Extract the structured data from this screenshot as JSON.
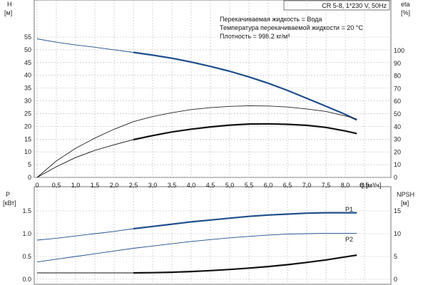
{
  "chart_data": [
    {
      "type": "line",
      "title": "CR 5-8, 1*230 V, 50Hz",
      "xlabel": "Q",
      "xunit": "[м³/ч]",
      "ylabel": "H",
      "yunit": "[м]",
      "y2label": "eta",
      "y2unit": "[%]",
      "xlim": [
        0,
        9
      ],
      "ylim": [
        0,
        55
      ],
      "y2lim": [
        0,
        100
      ],
      "xticks": [
        "0",
        "0,5",
        "1,0",
        "1,5",
        "2,0",
        "2,5",
        "3,0",
        "3,5",
        "4,0",
        "4,5",
        "5,0",
        "5,5",
        "6,0",
        "6,5",
        "7,0",
        "7,5",
        "8,0",
        "8,5"
      ],
      "yticks": [
        "0",
        "5",
        "10",
        "15",
        "20",
        "25",
        "30",
        "35",
        "40",
        "45",
        "50",
        "55"
      ],
      "y2ticks": [
        "0",
        "10",
        "20",
        "30",
        "40",
        "50",
        "60",
        "70",
        "80",
        "90",
        "100"
      ],
      "grid": true,
      "annotations": [
        "Перекачиваемая жидкость = Вода",
        "Температура перекачиваемой жидкости = 20 °C",
        "Плотность = 998.2 кг/м³"
      ],
      "series": [
        {
          "axis": "left",
          "color": "#1f4e8c",
          "x": [
            0,
            0.5,
            1.0,
            1.5,
            2.0,
            2.5,
            3.0,
            3.5,
            4.0,
            4.5,
            5.0,
            5.5,
            6.0,
            6.5,
            7.0,
            7.5,
            8.0,
            8.3
          ],
          "values": [
            54.3,
            53.0,
            51.9,
            51.0,
            50.0,
            49.0,
            47.9,
            46.7,
            45.2,
            43.5,
            41.6,
            39.4,
            36.9,
            34.1,
            31.0,
            27.9,
            24.7,
            22.5
          ],
          "highlight_from": 2.5
        },
        {
          "axis": "right",
          "color": "#222222",
          "x": [
            0,
            0.5,
            1.0,
            1.5,
            2.0,
            2.5,
            3.0,
            3.5,
            4.0,
            4.5,
            5.0,
            5.5,
            6.0,
            6.5,
            7.0,
            7.5,
            8.0,
            8.3
          ],
          "values": [
            0,
            13,
            23,
            31,
            38,
            44,
            48,
            51,
            53.5,
            55,
            56,
            56.5,
            56.3,
            55.5,
            54,
            52,
            48.5,
            46
          ],
          "highlight_from": 100
        },
        {
          "axis": "left",
          "color": "#111111",
          "x": [
            0,
            0.5,
            1.0,
            1.5,
            2.0,
            2.5,
            3.0,
            3.5,
            4.0,
            4.5,
            5.0,
            5.5,
            6.0,
            6.5,
            7.0,
            7.5,
            8.0,
            8.3
          ],
          "values": [
            0,
            4.2,
            7.8,
            10.6,
            12.8,
            14.8,
            16.4,
            17.8,
            18.9,
            19.8,
            20.5,
            20.9,
            21.0,
            20.8,
            20.4,
            19.6,
            18.2,
            17.2
          ],
          "highlight_from": 2.5
        }
      ]
    },
    {
      "type": "line",
      "ylabel": "P",
      "yunit": "[кВт]",
      "y2label": "NPSH",
      "y2unit": "[м]",
      "xlim": [
        0,
        9
      ],
      "ylim": [
        0,
        2.0
      ],
      "y2lim": [
        0,
        20
      ],
      "yticks": [
        "0.0",
        "0.5",
        "1.0",
        "1.5"
      ],
      "y2ticks": [
        "0",
        "5",
        "10",
        "15"
      ],
      "grid": true,
      "series": [
        {
          "name": "P1",
          "axis": "left",
          "color": "#1f4e8c",
          "x": [
            0,
            0.5,
            1.0,
            1.5,
            2.0,
            2.5,
            3.0,
            3.5,
            4.0,
            4.5,
            5.0,
            5.5,
            6.0,
            6.5,
            7.0,
            7.5,
            8.0,
            8.3
          ],
          "values": [
            0.86,
            0.9,
            0.95,
            1.0,
            1.05,
            1.11,
            1.16,
            1.21,
            1.26,
            1.3,
            1.34,
            1.38,
            1.41,
            1.43,
            1.45,
            1.46,
            1.46,
            1.46
          ],
          "highlight_from": 2.5
        },
        {
          "name": "P2",
          "axis": "left",
          "color": "#1f4e8c",
          "x": [
            0,
            0.5,
            1.0,
            1.5,
            2.0,
            2.5,
            3.0,
            3.5,
            4.0,
            4.5,
            5.0,
            5.5,
            6.0,
            6.5,
            7.0,
            7.5,
            8.0,
            8.3
          ],
          "values": [
            0.38,
            0.44,
            0.5,
            0.56,
            0.62,
            0.68,
            0.73,
            0.78,
            0.83,
            0.87,
            0.91,
            0.94,
            0.97,
            0.99,
            1.0,
            1.01,
            1.01,
            1.01
          ],
          "highlight_from": 100
        },
        {
          "axis": "right",
          "color": "#111111",
          "x": [
            0,
            0.5,
            1.0,
            1.5,
            2.0,
            2.5,
            3.0,
            3.5,
            4.0,
            4.5,
            5.0,
            5.5,
            6.0,
            6.5,
            7.0,
            7.5,
            8.0,
            8.3
          ],
          "values": [
            1.4,
            1.4,
            1.4,
            1.4,
            1.4,
            1.4,
            1.45,
            1.55,
            1.7,
            1.9,
            2.15,
            2.45,
            2.8,
            3.2,
            3.7,
            4.25,
            4.9,
            5.3
          ],
          "highlight_from": 2.5
        }
      ]
    }
  ]
}
